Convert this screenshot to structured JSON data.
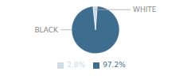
{
  "chart_data": {
    "type": "pie",
    "categories": [
      "BLACK",
      "WHITE"
    ],
    "values": [
      97.2,
      2.8
    ],
    "value_labels": [
      "97.2%",
      "2.8%"
    ],
    "colors": [
      "#3d6e8f",
      "#cddce6"
    ],
    "legend": "bottom"
  }
}
